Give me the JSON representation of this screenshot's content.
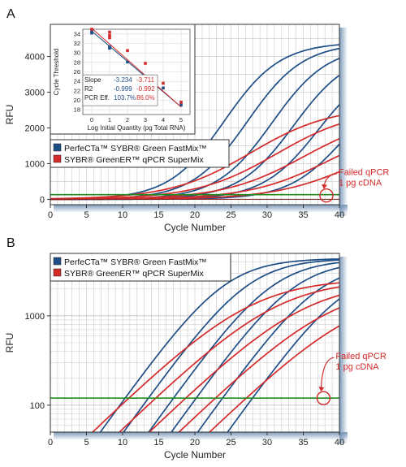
{
  "colors": {
    "perfecta": "#1f4e87",
    "sybr": "#d42a2a",
    "threshold": "#1f8a1f",
    "annotation": "#d42a2a",
    "axis_shadow": "#6f8fb3"
  },
  "chart_data": [
    {
      "id": "A",
      "panel_label": "A",
      "type": "line",
      "xlabel": "Cycle Number",
      "ylabel": "RFU",
      "xlim": [
        0,
        40
      ],
      "ylim": [
        -150,
        4900
      ],
      "xticks": [
        "0",
        "5",
        "10",
        "15",
        "20",
        "25",
        "30",
        "35",
        "40"
      ],
      "yticks": [
        "0",
        "1000",
        "2000",
        "3000",
        "4000"
      ],
      "ytick_values": [
        0,
        1000,
        2000,
        3000,
        4000
      ],
      "threshold": 130,
      "legend": {
        "placement": "lower-left",
        "entries": [
          {
            "label": "PerfeCTa™ SYBR® Green FastMix™",
            "color_key": "perfecta"
          },
          {
            "label": "SYBR® GreenER™ qPCR SuperMix",
            "color_key": "sybr"
          }
        ]
      },
      "annotation": {
        "line1": "Failed qPCR",
        "line2": "1 pg cDNA",
        "cycle": 38.2,
        "rfu": 130
      },
      "series": [
        {
          "color_key": "perfecta",
          "curves": [
            {
              "ct": 19.6,
              "max": 4400,
              "slope": 0.26
            },
            {
              "ct": 22.8,
              "max": 4380,
              "slope": 0.26
            },
            {
              "ct": 26.2,
              "max": 4300,
              "slope": 0.26
            },
            {
              "ct": 29.2,
              "max": 4150,
              "slope": 0.26
            },
            {
              "ct": 32.6,
              "max": 3900,
              "slope": 0.26
            },
            {
              "ct": 36.2,
              "max": 3400,
              "slope": 0.26
            }
          ]
        },
        {
          "color_key": "sybr",
          "curves": [
            {
              "ct": 23.2,
              "max": 2600,
              "slope": 0.18
            },
            {
              "ct": 26.8,
              "max": 2550,
              "slope": 0.18
            },
            {
              "ct": 30.6,
              "max": 2400,
              "slope": 0.18
            },
            {
              "ct": 34.2,
              "max": 2200,
              "slope": 0.18
            },
            {
              "ct": 37.6,
              "max": 1900,
              "slope": 0.18
            }
          ]
        }
      ],
      "inset": {
        "type": "scatter",
        "xlabel": "Log Initial Quantity (pg Total RNA)",
        "ylabel": "Cycle Threshold",
        "xlim": [
          -0.5,
          5.5
        ],
        "ylim": [
          17,
          35
        ],
        "xticks": [
          "0",
          "1",
          "2",
          "3",
          "4",
          "5"
        ],
        "yticks": [
          "18",
          "20",
          "22",
          "24",
          "26",
          "28",
          "30",
          "32",
          "34"
        ],
        "ytick_values": [
          18,
          20,
          22,
          24,
          26,
          28,
          30,
          32,
          34
        ],
        "series": [
          {
            "color_key": "perfecta",
            "x": [
              0,
              0,
              1,
              1,
              2,
              3,
              4,
              5
            ],
            "y": [
              34.6,
              34.2,
              31.3,
              31.0,
              28.1,
              24.3,
              22.6,
              19.0
            ],
            "fit_x": [
              0,
              5
            ],
            "fit_y": [
              34.6,
              18.6
            ]
          },
          {
            "color_key": "sybr",
            "x": [
              0,
              1,
              1,
              1,
              2,
              3,
              4,
              5
            ],
            "y": [
              35.0,
              34.4,
              33.7,
              33.2,
              30.5,
              27.8,
              23.6,
              19.6
            ],
            "fit_x": [
              0,
              5
            ],
            "fit_y": [
              35.2,
              18.6
            ]
          }
        ],
        "stats": {
          "rows": [
            {
              "label": "Slope",
              "perfecta": "-3.234",
              "sybr": "-3.711"
            },
            {
              "label": "R2",
              "perfecta": "-0.999",
              "sybr": "-0.992"
            },
            {
              "label": "PCR Eff.",
              "perfecta": "103.7%",
              "sybr": "86.0%"
            }
          ]
        }
      }
    },
    {
      "id": "B",
      "panel_label": "B",
      "type": "line",
      "log_y": true,
      "xlabel": "Cycle Number",
      "ylabel": "RFU",
      "xlim": [
        0,
        40
      ],
      "ylim": [
        50,
        5000
      ],
      "xticks": [
        "0",
        "5",
        "10",
        "15",
        "20",
        "25",
        "30",
        "35",
        "40"
      ],
      "yticks": [
        "100",
        "1000"
      ],
      "ytick_values": [
        100,
        1000
      ],
      "threshold": 120,
      "legend": {
        "placement": "top-left",
        "entries": [
          {
            "label": "PerfeCTa™ SYBR® Green FastMix™",
            "color_key": "perfecta"
          },
          {
            "label": "SYBR® GreenER™ qPCR SuperMix",
            "color_key": "sybr"
          }
        ]
      },
      "annotation": {
        "line1": "Failed qPCR",
        "line2": "1 pg cDNA",
        "cycle": 37.8,
        "rfu": 120
      },
      "series": [
        {
          "color_key": "perfecta",
          "curves": [
            {
              "ct": 19.6,
              "max": 4400,
              "slope": 0.26
            },
            {
              "ct": 22.8,
              "max": 4380,
              "slope": 0.26
            },
            {
              "ct": 26.2,
              "max": 4300,
              "slope": 0.26
            },
            {
              "ct": 29.2,
              "max": 4150,
              "slope": 0.26
            },
            {
              "ct": 32.6,
              "max": 3900,
              "slope": 0.26
            },
            {
              "ct": 36.2,
              "max": 3400,
              "slope": 0.26
            }
          ]
        },
        {
          "color_key": "sybr",
          "curves": [
            {
              "ct": 23.2,
              "max": 2600,
              "slope": 0.18
            },
            {
              "ct": 26.8,
              "max": 2550,
              "slope": 0.18
            },
            {
              "ct": 30.6,
              "max": 2400,
              "slope": 0.18
            },
            {
              "ct": 34.2,
              "max": 2200,
              "slope": 0.18
            },
            {
              "ct": 37.6,
              "max": 1900,
              "slope": 0.18
            }
          ]
        }
      ]
    }
  ]
}
